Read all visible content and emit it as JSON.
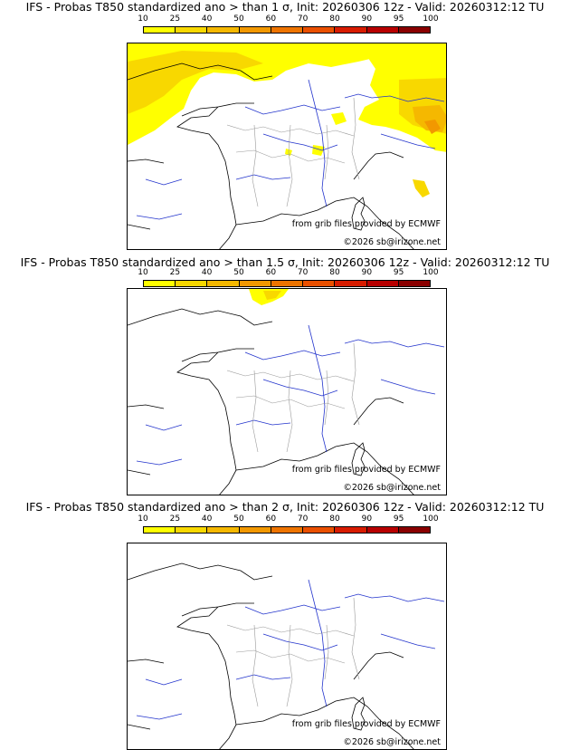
{
  "colorbar": {
    "ticks": [
      "10",
      "25",
      "40",
      "50",
      "60",
      "70",
      "80",
      "90",
      "95",
      "100"
    ],
    "colors": [
      "#ffff00",
      "#f8d800",
      "#f5b800",
      "#f29800",
      "#ee7400",
      "#ea5000",
      "#d81c00",
      "#b80000",
      "#8a0000"
    ]
  },
  "panels": [
    {
      "title": "IFS - Probas T850  standardized ano > than 1 σ, Init: 20260306 12z - Valid: 20260312:12 TU",
      "credit_source": "from grib files provided by ECMWF",
      "credit_copyright": "©2026 sb@irizone.net",
      "shading": "extensive"
    },
    {
      "title": "IFS - Probas T850  standardized ano > than 1.5 σ, Init: 20260306 12z - Valid: 20260312:12 TU",
      "credit_source": "from grib files provided by ECMWF",
      "credit_copyright": "©2026 sb@irizone.net",
      "shading": "minimal"
    },
    {
      "title": "IFS - Probas T850  standardized ano > than 2 σ, Init: 20260306 12z - Valid: 20260312:12 TU",
      "credit_source": "from grib files provided by ECMWF",
      "credit_copyright": "©2026 sb@irizone.net",
      "shading": "none"
    }
  ]
}
